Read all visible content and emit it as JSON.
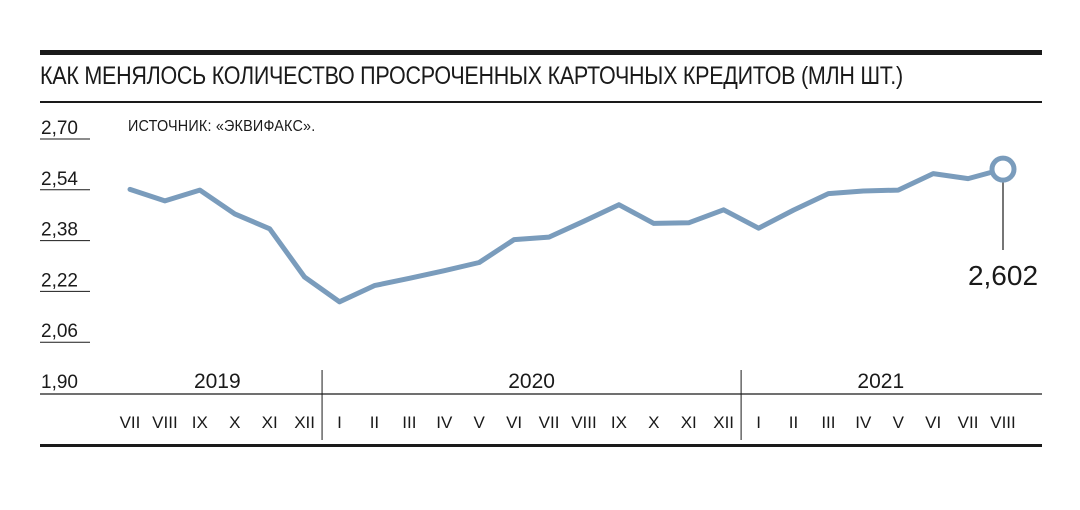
{
  "chart_data": {
    "type": "line",
    "title": "КАК МЕНЯЛОСЬ КОЛИЧЕСТВО ПРОСРОЧЕННЫХ КАРТОЧНЫХ КРЕДИТОВ (МЛН ШТ.)",
    "source": "ИСТОЧНИК: «ЭКВИФАКС».",
    "yticks": [
      "2,70",
      "2,54",
      "2,38",
      "2,22",
      "2,06",
      "1,90"
    ],
    "ylim": [
      1.9,
      2.7
    ],
    "years": [
      {
        "label": "2019",
        "start": 0,
        "count": 6
      },
      {
        "label": "2020",
        "start": 6,
        "count": 12
      },
      {
        "label": "2021",
        "start": 18,
        "count": 8
      }
    ],
    "months": [
      "VII",
      "VIII",
      "IX",
      "X",
      "XI",
      "XII",
      "I",
      "II",
      "III",
      "IV",
      "V",
      "VI",
      "VII",
      "VIII",
      "IX",
      "X",
      "XI",
      "XII",
      "I",
      "II",
      "III",
      "IV",
      "V",
      "VI",
      "VII",
      "VIII"
    ],
    "values": [
      2.538,
      2.502,
      2.536,
      2.461,
      2.414,
      2.262,
      2.184,
      2.235,
      2.258,
      2.282,
      2.308,
      2.38,
      2.388,
      2.438,
      2.49,
      2.431,
      2.433,
      2.474,
      2.416,
      2.473,
      2.525,
      2.533,
      2.536,
      2.588,
      2.572,
      2.602
    ],
    "end_label": "2,602",
    "grid": false,
    "line_color": "#7a9cbc"
  }
}
